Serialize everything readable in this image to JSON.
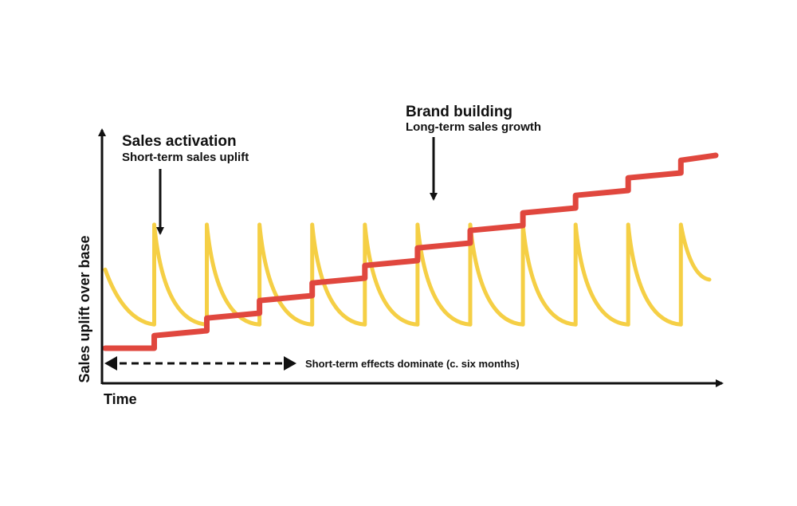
{
  "annotations": {
    "activation_title": "Sales activation",
    "activation_sub": "Short-term sales uplift",
    "brand_title": "Brand building",
    "brand_sub": "Long-term sales growth",
    "short_term_note": "Short-term effects dominate (c. six months)"
  },
  "axes": {
    "x_label": "Time",
    "y_label": "Sales uplift over base"
  },
  "colors": {
    "activation": "#F5CF45",
    "brand": "#E0473E",
    "ink": "#111111"
  },
  "chart_data": {
    "type": "line",
    "series": [
      {
        "name": "Sales activation",
        "style": "sawtooth",
        "peaks": 12,
        "peak_level": 0.57,
        "trough_level": 0.19
      },
      {
        "name": "Brand building",
        "style": "stepped",
        "steps": 12,
        "start_level": 0.1,
        "end_level": 0.9
      }
    ]
  }
}
